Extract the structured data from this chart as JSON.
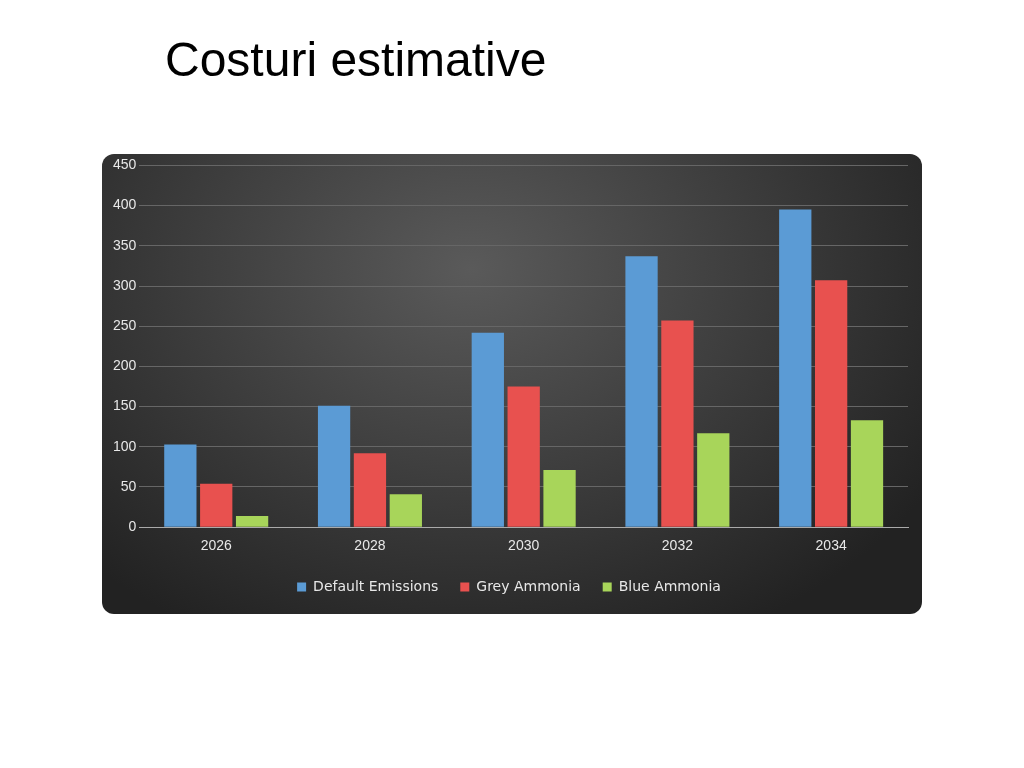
{
  "chart_data": {
    "type": "bar",
    "title": "Costuri estimative",
    "categories": [
      "2026",
      "2028",
      "2030",
      "2032",
      "2034"
    ],
    "series": [
      {
        "name": "Default Emissions",
        "color": "#5b9bd5",
        "values": [
          103,
          151,
          242,
          337,
          395
        ]
      },
      {
        "name": "Grey Ammonia",
        "color": "#e8514f",
        "values": [
          54,
          92,
          175,
          257,
          307
        ]
      },
      {
        "name": "Blue Ammonia",
        "color": "#a8d55a",
        "values": [
          14,
          41,
          71,
          117,
          133
        ]
      }
    ],
    "ylim": [
      0,
      450
    ],
    "yticks": [
      0,
      50,
      100,
      150,
      200,
      250,
      300,
      350,
      400,
      450
    ],
    "grid": "y",
    "legend": "bottom"
  }
}
